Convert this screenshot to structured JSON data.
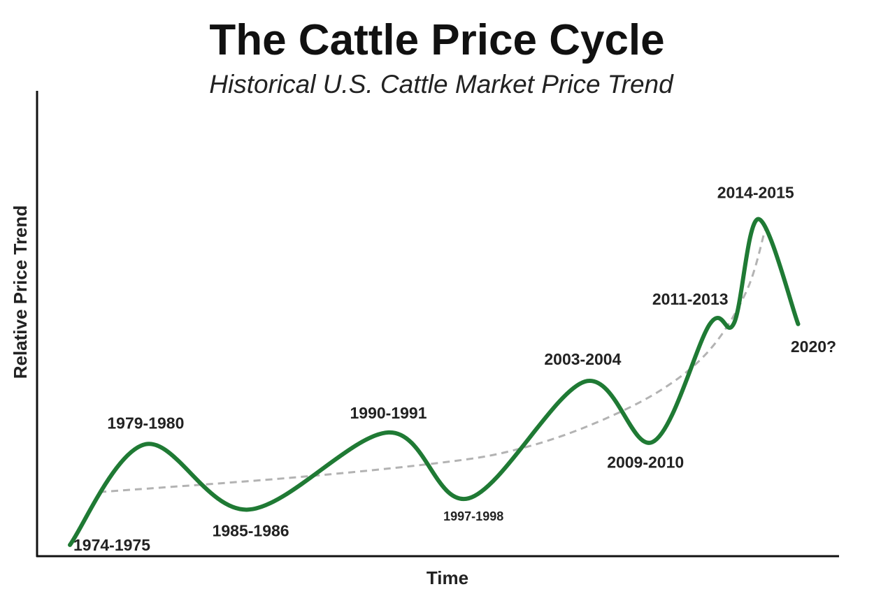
{
  "colors": {
    "line": "#1f7a34",
    "trend": "#b3b3b3",
    "axis": "#111111",
    "text": "#222222"
  },
  "chart_data": {
    "type": "line",
    "title": "The Cattle Price Cycle",
    "subtitle": "Historical U.S. Cattle Market Price Trend",
    "xlabel": "Time",
    "ylabel": "Relative Price Trend",
    "grid": false,
    "legend": "none",
    "x_domain": [
      0,
      100
    ],
    "y_domain": [
      0,
      100
    ],
    "series": [
      {
        "points": [
          {
            "x": 0,
            "y": 7.5
          },
          {
            "x": 10.3,
            "y": 31.5
          },
          {
            "x": 24.2,
            "y": 15.9
          },
          {
            "x": 43.3,
            "y": 34.3
          },
          {
            "x": 54.2,
            "y": 18.6
          },
          {
            "x": 70.0,
            "y": 46.4
          },
          {
            "x": 79.2,
            "y": 32.0
          },
          {
            "x": 87.0,
            "y": 60.1
          },
          {
            "x": 90.3,
            "y": 60.4
          },
          {
            "x": 93.6,
            "y": 85.1
          },
          {
            "x": 99.0,
            "y": 60.1
          }
        ]
      }
    ],
    "trend": {
      "points": [
        {
          "x": 4.0,
          "y": 20.1
        },
        {
          "x": 30.0,
          "y": 23.5
        },
        {
          "x": 50.0,
          "y": 27.0
        },
        {
          "x": 60.0,
          "y": 29.9
        },
        {
          "x": 70.0,
          "y": 35.5
        },
        {
          "x": 80.0,
          "y": 44.0
        },
        {
          "x": 87.0,
          "y": 54.0
        },
        {
          "x": 92.0,
          "y": 68.0
        },
        {
          "x": 94.5,
          "y": 82.5
        }
      ]
    },
    "annotations": [
      {
        "label": "1974-1975",
        "point": 0,
        "anchor": "start",
        "size": "large"
      },
      {
        "label": "1979-1980",
        "point": 1,
        "anchor": "middle",
        "size": "large"
      },
      {
        "label": "1985-1986",
        "point": 2,
        "anchor": "middle",
        "size": "large"
      },
      {
        "label": "1990-1991",
        "point": 3,
        "anchor": "middle",
        "size": "large"
      },
      {
        "label": "1997-1998",
        "point": 4,
        "anchor": "middle",
        "size": "small"
      },
      {
        "label": "2003-2004",
        "point": 5,
        "anchor": "middle",
        "size": "large"
      },
      {
        "label": "2009-2010",
        "point": 6,
        "anchor": "middle",
        "size": "large"
      },
      {
        "label": "2011-2013",
        "point": 7,
        "anchor": "middle",
        "size": "large"
      },
      {
        "label": "2014-2015",
        "point": 9,
        "anchor": "middle",
        "size": "large"
      },
      {
        "label": "2020?",
        "point": 10,
        "anchor": "middle",
        "size": "large"
      }
    ]
  }
}
